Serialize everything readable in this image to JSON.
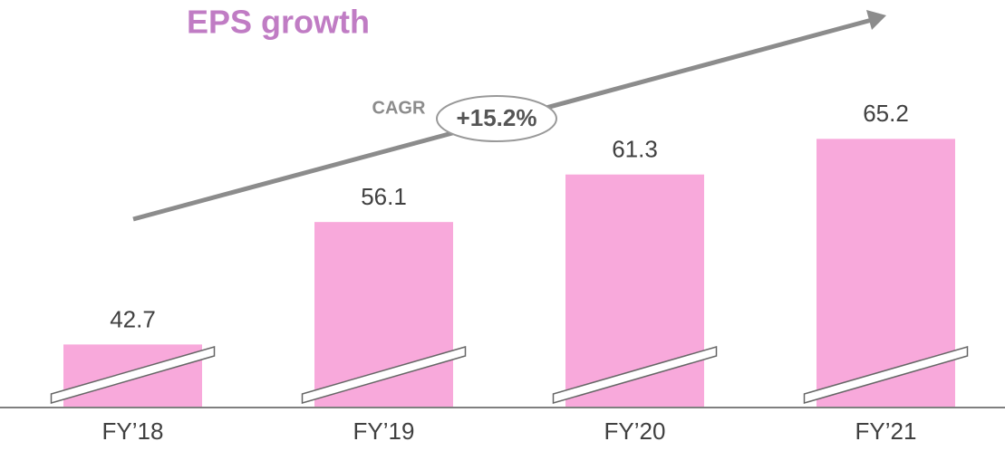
{
  "chart_data": {
    "type": "bar",
    "title": "EPS growth",
    "annotations": {
      "label": "CAGR",
      "value": "+15.2%"
    },
    "categories": [
      "FY’18",
      "FY’19",
      "FY’20",
      "FY’21"
    ],
    "values": [
      42.7,
      56.1,
      61.3,
      65.2
    ],
    "color": "#f8a9db",
    "ylim": [
      35.8,
      80
    ]
  }
}
